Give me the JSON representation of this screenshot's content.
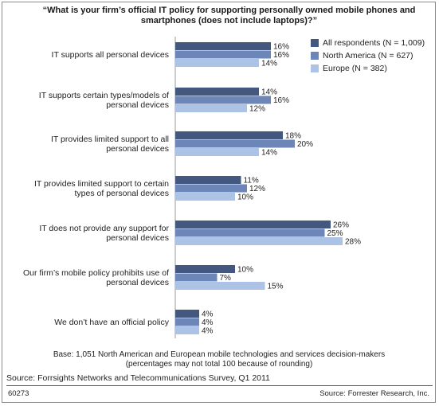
{
  "question": "“What is your firm’s official IT policy for supporting personally owned mobile phones and smartphones (does not include laptops)?”",
  "base_note_line1": "Base: 1,051 North American and European mobile technologies and services decision-makers",
  "base_note_line2": "(percentages may not total 100 because of rounding)",
  "source": "Source: Forrsights Networks and Telecommunications Survey, Q1 2011",
  "figure_id": "60273",
  "credit": "Source: Forrester Research, Inc.",
  "colors": {
    "all_respondents": "#44587f",
    "north_america": "#6d86b8",
    "europe": "#adc3e6"
  },
  "chart_data": {
    "type": "bar",
    "orientation": "horizontal",
    "categories": [
      [
        "IT supports all personal devices"
      ],
      [
        "IT supports certain types/models of",
        "personal devices"
      ],
      [
        "IT provides limited support to all",
        "personal devices"
      ],
      [
        "IT provides limited support to certain",
        "types of personal devices"
      ],
      [
        "IT does not provide any support for",
        "personal devices"
      ],
      [
        "Our firm’s mobile policy prohibits use of",
        "personal devices"
      ],
      [
        "We don’t have an official policy"
      ]
    ],
    "series": [
      {
        "name": "All respondents (N = 1,009)",
        "values": [
          16,
          14,
          18,
          11,
          26,
          10,
          4
        ]
      },
      {
        "name": "North America (N = 627)",
        "values": [
          16,
          16,
          20,
          12,
          25,
          7,
          4
        ]
      },
      {
        "name": "Europe (N = 382)",
        "values": [
          14,
          12,
          14,
          10,
          28,
          15,
          4
        ]
      }
    ],
    "value_suffix": "%",
    "xlim": [
      0,
      28
    ],
    "legend_position": "top-right"
  }
}
